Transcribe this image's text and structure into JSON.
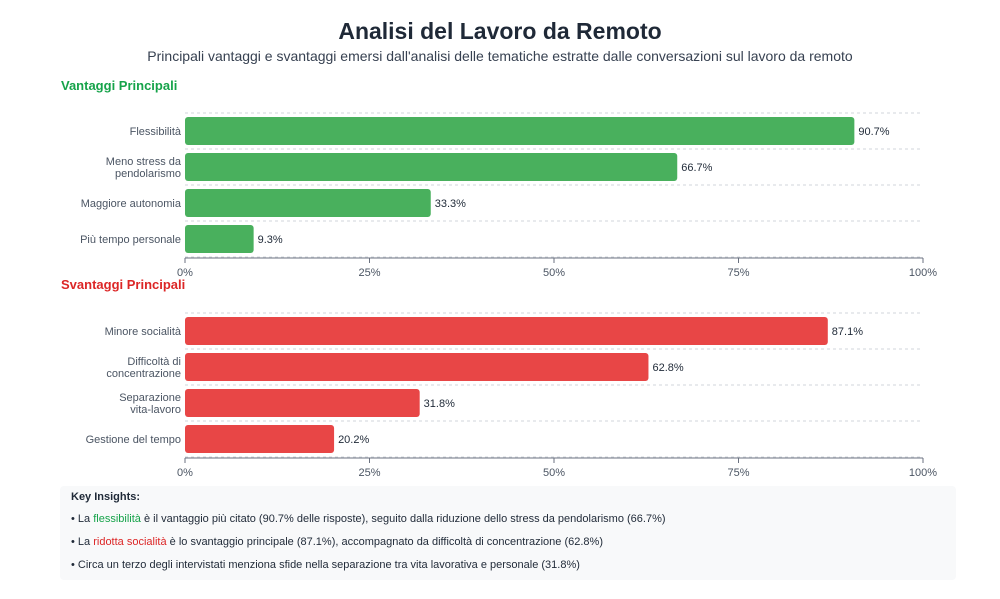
{
  "title": "Analisi del Lavoro da Remoto",
  "subtitle": "Principali vantaggi e svantaggi emersi dall'analisi delle tematiche estratte dalle conversazioni sul lavoro da remoto",
  "colors": {
    "advantages": "#49b05d",
    "disadvantages": "#e84646",
    "advantages_text": "#16a34a",
    "disadvantages_text": "#dc2626"
  },
  "chart_data": [
    {
      "type": "bar",
      "orientation": "horizontal",
      "title": "Vantaggi Principali",
      "categories": [
        [
          "Flessibilità"
        ],
        [
          "Meno stress da",
          "pendolarismo"
        ],
        [
          "Maggiore autonomia"
        ],
        [
          "Più tempo personale"
        ]
      ],
      "values": [
        90.7,
        66.7,
        33.3,
        9.3
      ],
      "value_labels": [
        "90.7%",
        "66.7%",
        "33.3%",
        "9.3%"
      ],
      "xlim": [
        0,
        100
      ],
      "ticks": [
        "0%",
        "25%",
        "50%",
        "75%",
        "100%"
      ],
      "grid": true
    },
    {
      "type": "bar",
      "orientation": "horizontal",
      "title": "Svantaggi Principali",
      "categories": [
        [
          "Minore socialità"
        ],
        [
          "Difficoltà di",
          "concentrazione"
        ],
        [
          "Separazione",
          "vita-lavoro"
        ],
        [
          "Gestione del tempo"
        ]
      ],
      "values": [
        87.1,
        62.8,
        31.8,
        20.2
      ],
      "value_labels": [
        "87.1%",
        "62.8%",
        "31.8%",
        "20.2%"
      ],
      "xlim": [
        0,
        100
      ],
      "ticks": [
        "0%",
        "25%",
        "50%",
        "75%",
        "100%"
      ],
      "grid": true
    }
  ],
  "insights": {
    "title": "Key Insights:",
    "items": [
      {
        "bullet": "• ",
        "pre": "La ",
        "highlight": "flessibilità",
        "post": " è il vantaggio più citato (90.7% delle risposte), seguito dalla riduzione dello stress da pendolarismo (66.7%)"
      },
      {
        "bullet": "• ",
        "pre": "La ",
        "highlight": "ridotta socialità",
        "post": " è lo svantaggio principale (87.1%), accompagnato da difficoltà di concentrazione (62.8%)"
      },
      {
        "bullet": "• ",
        "pre": "",
        "highlight": "",
        "post": "Circa un terzo degli intervistati menziona sfide nella separazione tra vita lavorativa e personale (31.8%)"
      }
    ]
  }
}
